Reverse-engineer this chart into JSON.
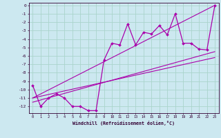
{
  "xlabel": "Windchill (Refroidissement éolien,°C)",
  "bg_color": "#cce8f0",
  "grid_color": "#aad4cc",
  "line_color": "#aa00aa",
  "x_values": [
    0,
    1,
    2,
    3,
    4,
    5,
    6,
    7,
    8,
    9,
    10,
    11,
    12,
    13,
    14,
    15,
    16,
    17,
    18,
    19,
    20,
    21,
    22,
    23
  ],
  "y_values": [
    -9.5,
    -12.0,
    -11.0,
    -10.5,
    -11.0,
    -12.0,
    -12.0,
    -12.5,
    -12.5,
    -6.5,
    -4.5,
    -4.7,
    -2.2,
    -4.7,
    -3.2,
    -3.4,
    -2.4,
    -3.5,
    -1.0,
    -4.5,
    -4.5,
    -5.2,
    -5.3,
    0.0
  ],
  "regression_lines": [
    {
      "x": [
        0,
        23
      ],
      "y": [
        -11.5,
        -5.5
      ]
    },
    {
      "x": [
        0,
        23
      ],
      "y": [
        -11.0,
        -6.2
      ]
    },
    {
      "x": [
        0,
        23
      ],
      "y": [
        -11.0,
        0.0
      ]
    }
  ],
  "xlim": [
    -0.5,
    23.5
  ],
  "ylim": [
    -12.8,
    0.3
  ],
  "yticks": [
    0,
    -1,
    -2,
    -3,
    -4,
    -5,
    -6,
    -7,
    -8,
    -9,
    -10,
    -11,
    -12
  ],
  "xticks": [
    0,
    1,
    2,
    3,
    4,
    5,
    6,
    7,
    8,
    9,
    10,
    11,
    12,
    13,
    14,
    15,
    16,
    17,
    18,
    19,
    20,
    21,
    22,
    23
  ]
}
